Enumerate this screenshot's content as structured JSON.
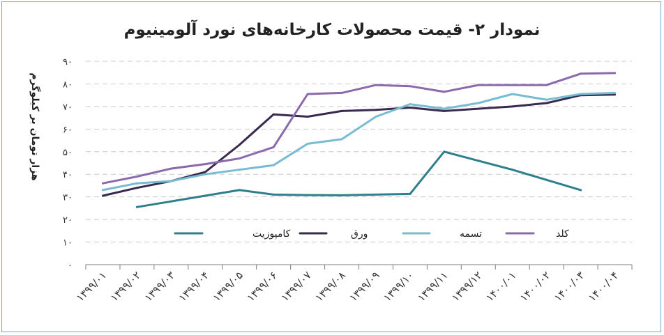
{
  "chart_data": {
    "type": "line",
    "title": "نمودار ۲- قیمت محصولات کارخانه‌های نورد آلومینیوم",
    "xlabel": "",
    "ylabel": "هزار تومان بر کیلوگرم",
    "ylim": [
      0,
      90
    ],
    "y_ticks": [
      "۰",
      "۱۰",
      "۲۰",
      "۳۰",
      "۴۰",
      "۵۰",
      "۶۰",
      "۷۰",
      "۸۰",
      "۹۰"
    ],
    "grid": true,
    "legend_position": "bottom-center",
    "categories": [
      "۱۳۹۹/۰۱",
      "۱۳۹۹/۰۲",
      "۱۳۹۹/۰۳",
      "۱۳۹۹/۰۴",
      "۱۳۹۹/۰۵",
      "۱۳۹۹/۰۶",
      "۱۳۹۹/۰۷",
      "۱۳۹۹/۰۸",
      "۱۳۹۹/۰۹",
      "۱۳۹۹/۱۰",
      "۱۳۹۹/۱۱",
      "۱۳۹۹/۱۲",
      "۱۴۰۰/۰۱",
      "۱۴۰۰/۰۲",
      "۱۴۰۰/۰۳",
      "۱۴۰۰/۰۴"
    ],
    "series": [
      {
        "name": "کامپوزیت",
        "color": "#2e7f8c",
        "values": [
          null,
          25.5,
          28,
          30.5,
          33,
          31,
          30.8,
          30.7,
          31,
          31.3,
          50,
          46,
          42,
          37.5,
          33,
          null
        ]
      },
      {
        "name": "ورق",
        "color": "#3a2a4f",
        "values": [
          30.5,
          34,
          37,
          41,
          53,
          66.5,
          65.5,
          68,
          68.5,
          69.5,
          68,
          69,
          70,
          71.5,
          75,
          75.3
        ]
      },
      {
        "name": "تسمه",
        "color": "#77bcd3",
        "values": [
          33,
          36,
          37,
          40,
          42,
          44,
          53.5,
          55.5,
          65.5,
          71,
          69,
          71.5,
          75.5,
          73,
          75.5,
          76
        ]
      },
      {
        "name": "کلد",
        "color": "#8a6aad",
        "values": [
          36,
          39,
          42.5,
          44.5,
          47,
          52,
          75.5,
          76,
          79.5,
          79,
          76.5,
          79.5,
          79.5,
          79.5,
          84.5,
          84.8
        ]
      }
    ]
  }
}
